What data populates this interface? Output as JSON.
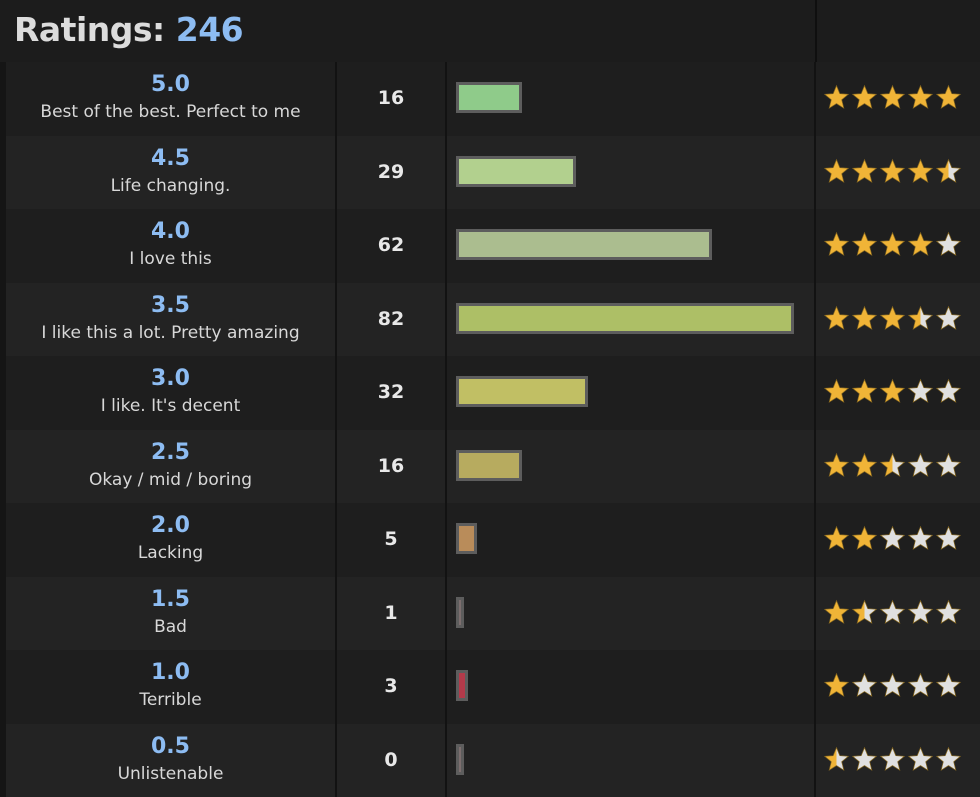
{
  "header": {
    "title_label": "Ratings:",
    "total": "246"
  },
  "chart_data": {
    "type": "bar",
    "orientation": "horizontal",
    "title": "Ratings: 246",
    "categories": [
      "5.0",
      "4.5",
      "4.0",
      "3.5",
      "3.0",
      "2.5",
      "2.0",
      "1.5",
      "1.0",
      "0.5"
    ],
    "descriptions": [
      "Best of the best. Perfect to me",
      "Life changing.",
      "I love this",
      "I like this a lot. Pretty amazing",
      "I like. It's decent",
      "Okay / mid / boring",
      "Lacking",
      "Bad",
      "Terrible",
      "Unlistenable"
    ],
    "values": [
      16,
      29,
      62,
      82,
      32,
      16,
      5,
      1,
      3,
      0
    ],
    "stars": [
      5.0,
      4.5,
      4.0,
      3.5,
      3.0,
      2.5,
      2.0,
      1.5,
      1.0,
      0.5
    ],
    "bar_colors": [
      "#8fcb8a",
      "#b2d08e",
      "#abbd8f",
      "#adbf66",
      "#c1bf64",
      "#b7ab5f",
      "#b98c5a",
      "#7d6f6f",
      "#b33a4a",
      "#7d6f6f"
    ],
    "xlim": [
      0,
      82
    ],
    "colors": {
      "accent": "#8dbcf2",
      "star_filled": "#f0b437",
      "star_empty": "#e0e0e0"
    }
  }
}
